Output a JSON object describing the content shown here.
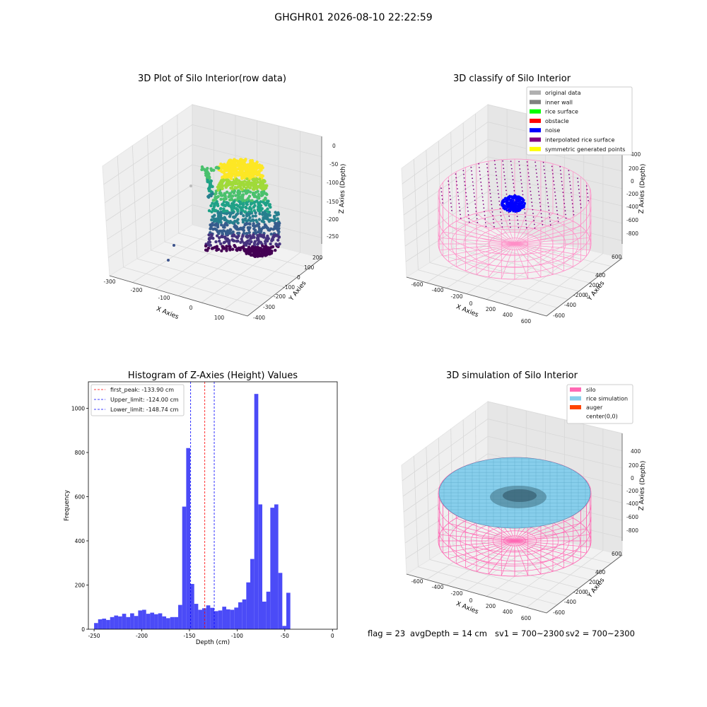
{
  "figure": {
    "suptitle": "GHGHR01 2026-08-10 22:22:59",
    "footer": {
      "flag": "flag = 23",
      "avg_depth": "avgDepth = 14 cm",
      "sv1": "sv1 = 700~2300",
      "sv2": "sv2 = 700~2300"
    }
  },
  "chart_data": [
    {
      "type": "scatter",
      "title": "3D Plot of Silo Interior(row data)",
      "xlabel": "X Axies",
      "ylabel": "Y Axies",
      "zlabel": "Z Axies (Depth)",
      "x_ticks": [
        "-300",
        "-200",
        "-100",
        "0",
        "100"
      ],
      "y_ticks": [
        "200",
        "100",
        "0",
        "-100",
        "-200",
        "-300",
        "-400"
      ],
      "z_ticks": [
        "0",
        "-50",
        "-100",
        "-150",
        "-200",
        "-250"
      ],
      "colormap": "viridis",
      "description_values": {
        "z_range": [
          -260,
          0
        ],
        "x_range": [
          -300,
          150
        ],
        "y_range": [
          -400,
          250
        ]
      }
    },
    {
      "type": "scatter",
      "title": "3D classify of Silo Interior",
      "xlabel": "X Axies",
      "ylabel": "Y Axies",
      "zlabel": "Z Axies (Depth)",
      "x_ticks": [
        "-600",
        "-400",
        "-200",
        "0",
        "200",
        "400",
        "600"
      ],
      "y_ticks": [
        "600",
        "400",
        "200",
        "0",
        "-200",
        "-400",
        "-600"
      ],
      "z_ticks": [
        "200",
        "0",
        "-200",
        "-400",
        "-600",
        "-800"
      ],
      "z_ticks_partial": [
        "400"
      ],
      "legend": [
        {
          "label": "original data",
          "color": "#b0b0b0"
        },
        {
          "label": "inner wall",
          "color": "#808080"
        },
        {
          "label": "rice surface",
          "color": "#00ff00"
        },
        {
          "label": "obstacle",
          "color": "#ff0000"
        },
        {
          "label": "noise",
          "color": "#0000ff"
        },
        {
          "label": "interpolated rice surface",
          "color": "#800080"
        },
        {
          "label": "symmetric generated points",
          "color": "#ffff00"
        }
      ],
      "legend_position": "top-right"
    },
    {
      "type": "bar",
      "title": "Histogram of Z-Axies (Height) Values",
      "xlabel": "Depth (cm)",
      "ylabel": "Frequency",
      "xlim": [
        -256,
        5
      ],
      "ylim": [
        0,
        1120
      ],
      "x_ticks": [
        -250,
        -200,
        -150,
        -100,
        -50,
        0
      ],
      "y_ticks": [
        0,
        200,
        400,
        600,
        800,
        1000
      ],
      "bar_color": "#4b4bf7",
      "bin_start": -250,
      "bin_width": 4.2,
      "values": [
        28,
        45,
        48,
        42,
        55,
        62,
        58,
        70,
        55,
        72,
        60,
        85,
        88,
        70,
        75,
        68,
        72,
        58,
        50,
        55,
        55,
        110,
        555,
        820,
        205,
        115,
        88,
        95,
        108,
        97,
        82,
        85,
        102,
        90,
        88,
        98,
        122,
        135,
        212,
        318,
        1065,
        565,
        125,
        170,
        550,
        565,
        255,
        15,
        165
      ],
      "vlines": [
        {
          "label": "first_peak: -133.90 cm",
          "x": -133.9,
          "color": "#ff0000"
        },
        {
          "label": "Upper_limit: -124.00 cm",
          "x": -124.0,
          "color": "#0000ff"
        },
        {
          "label": "Lower_limit: -148.74 cm",
          "x": -148.74,
          "color": "#0000ff"
        }
      ],
      "legend_position": "top-left"
    },
    {
      "type": "area",
      "title": "3D simulation of Silo Interior",
      "xlabel": "X Axies",
      "ylabel": "Y Axies",
      "zlabel": "Z Axies (Depth)",
      "x_ticks": [
        "-600",
        "-400",
        "-200",
        "0",
        "200",
        "400",
        "600"
      ],
      "y_ticks": [
        "600",
        "400",
        "200",
        "0",
        "-200",
        "-400",
        "-600"
      ],
      "z_ticks": [
        "400",
        "200",
        "0",
        "-200",
        "-400",
        "-600",
        "-800"
      ],
      "legend": [
        {
          "label": "silo",
          "color": "#ff69b4"
        },
        {
          "label": "rice simulation",
          "color": "#87ceeb"
        },
        {
          "label": "auger",
          "color": "#ff4500"
        },
        {
          "label": "center(0,0)",
          "color": "#ffffff"
        }
      ],
      "legend_position": "top-right"
    }
  ]
}
